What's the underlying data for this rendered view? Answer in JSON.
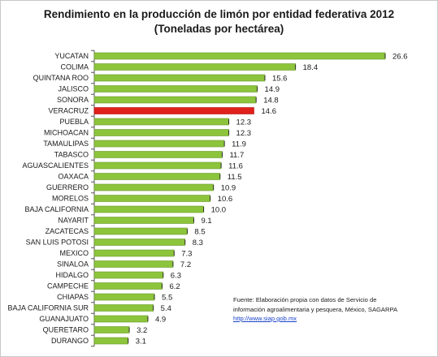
{
  "chart_data": {
    "type": "bar",
    "orientation": "horizontal",
    "title_line1": "Rendimiento en la producción de limón por entidad federativa 2012",
    "title_line2": "(Toneladas por hectárea)",
    "categories": [
      "YUCATAN",
      "COLIMA",
      "QUINTANA ROO",
      "JALISCO",
      "SONORA",
      "VERACRUZ",
      "PUEBLA",
      "MICHOACAN",
      "TAMAULIPAS",
      "TABASCO",
      "AGUASCALIENTES",
      "OAXACA",
      "GUERRERO",
      "MORELOS",
      "BAJA CALIFORNIA",
      "NAYARIT",
      "ZACATECAS",
      "SAN LUIS POTOSI",
      "MEXICO",
      "SINALOA",
      "HIDALGO",
      "CAMPECHE",
      "CHIAPAS",
      "BAJA CALIFORNIA SUR",
      "GUANAJUATO",
      "QUERETARO",
      "DURANGO"
    ],
    "values": [
      26.6,
      18.4,
      15.6,
      14.9,
      14.8,
      14.6,
      12.3,
      12.3,
      11.9,
      11.7,
      11.6,
      11.5,
      10.9,
      10.6,
      10.0,
      9.1,
      8.5,
      8.3,
      7.3,
      7.2,
      6.3,
      6.2,
      5.5,
      5.4,
      4.9,
      3.2,
      3.1
    ],
    "value_labels": [
      "26.6",
      "18.4",
      "15.6",
      "14.9",
      "14.8",
      "14.6",
      "12.3",
      "12.3",
      "11.9",
      "11.7",
      "11.6",
      "11.5",
      "10.9",
      "10.6",
      "10.0",
      "9.1",
      "8.5",
      "8.3",
      "7.3",
      "7.2",
      "6.3",
      "6.2",
      "5.5",
      "5.4",
      "4.9",
      "3.2",
      "3.1"
    ],
    "highlight": "VERACRUZ",
    "colors": {
      "bar": "#8cc43c",
      "bar_border": "#6a9a28",
      "highlight": "#e0201b",
      "highlight_border": "#b01010",
      "axis": "#555555"
    },
    "xlim": [
      0,
      27
    ]
  },
  "source": {
    "line1": "Fuente:  Elaboración  propia con datos de Servicio  de",
    "line2": "información agroalimentaria  y pesquera,  México, SAGARPA",
    "url": "http://www.siap.gob.mx"
  }
}
